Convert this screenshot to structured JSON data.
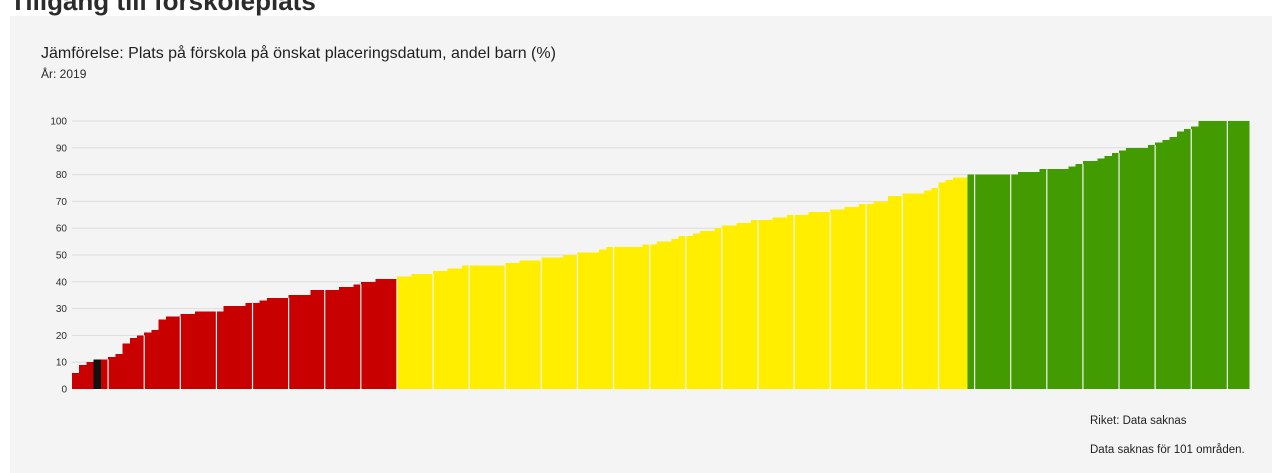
{
  "header": {
    "cut_title": "Tillgång till förskoleplats"
  },
  "chart_data": {
    "type": "bar",
    "title": "Jämförelse: Plats på förskola på önskat placeringsdatum, andel barn (%)",
    "subtitle": "År: 2019",
    "xlabel": "",
    "ylabel": "",
    "ylim": [
      0,
      100
    ],
    "yticks": [
      0,
      10,
      20,
      30,
      40,
      50,
      60,
      70,
      80,
      90,
      100
    ],
    "grid": true,
    "legend": "none",
    "thresholds": {
      "low_max": 41,
      "high_min": 80
    },
    "colors": {
      "low": "#c80000",
      "mid": "#ffee00",
      "high": "#429b00",
      "highlight": "#111111",
      "grid": "#dcdcdc",
      "divider": "#f4f4f4"
    },
    "highlight_index": 3,
    "values": [
      6,
      9,
      10,
      11,
      11,
      12,
      13,
      17,
      19,
      20,
      21,
      22,
      26,
      27,
      27,
      28,
      28,
      29,
      29,
      29,
      29,
      31,
      31,
      31,
      32,
      32,
      33,
      34,
      34,
      34,
      35,
      35,
      35,
      37,
      37,
      37,
      37,
      38,
      38,
      39,
      40,
      40,
      41,
      41,
      41,
      42,
      42,
      43,
      43,
      43,
      44,
      44,
      45,
      45,
      46,
      46,
      46,
      46,
      46,
      46,
      47,
      47,
      48,
      48,
      48,
      49,
      49,
      49,
      50,
      50,
      51,
      51,
      51,
      52,
      53,
      53,
      53,
      53,
      53,
      54,
      54,
      55,
      55,
      56,
      57,
      57,
      58,
      59,
      59,
      60,
      61,
      61,
      62,
      62,
      63,
      63,
      63,
      64,
      64,
      65,
      65,
      65,
      66,
      66,
      66,
      67,
      67,
      68,
      68,
      69,
      69,
      70,
      70,
      72,
      72,
      73,
      73,
      73,
      74,
      75,
      77,
      78,
      79,
      79,
      80,
      80,
      80,
      80,
      80,
      80,
      80,
      81,
      81,
      81,
      82,
      82,
      82,
      82,
      83,
      84,
      85,
      85,
      86,
      87,
      88,
      89,
      90,
      90,
      90,
      91,
      92,
      93,
      94,
      96,
      97,
      98,
      100,
      100,
      100,
      100,
      100,
      100,
      100
    ]
  },
  "footer": {
    "riket": "Riket: Data saknas",
    "missing": "Data saknas för 101 områden."
  }
}
